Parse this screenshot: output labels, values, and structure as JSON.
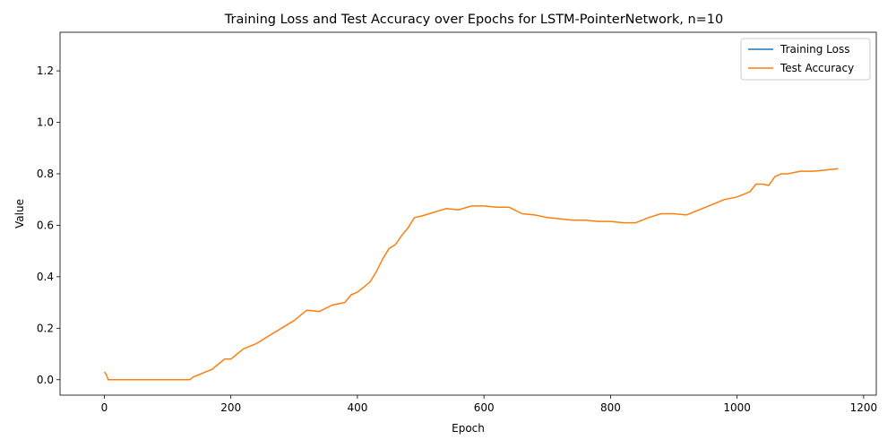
{
  "chart_data": {
    "type": "line",
    "title": "Training Loss and Test Accuracy over Epochs for LSTM-PointerNetwork, n=10",
    "xlabel": "Epoch",
    "ylabel": "Value",
    "xlim": [
      -70,
      1220
    ],
    "ylim": [
      -0.06,
      1.35
    ],
    "xticks": [
      0,
      200,
      400,
      600,
      800,
      1000,
      1200
    ],
    "xtick_labels": [
      "0",
      "200",
      "400",
      "600",
      "800",
      "1000",
      "1200"
    ],
    "yticks": [
      0.0,
      0.2,
      0.4,
      0.6,
      0.8,
      1.0,
      1.2
    ],
    "ytick_labels": [
      "0.0",
      "0.2",
      "0.4",
      "0.6",
      "0.8",
      "1.0",
      "1.2"
    ],
    "grid": false,
    "legend_position": "top-right",
    "series": [
      {
        "name": "Training Loss",
        "color": "#1f77b4",
        "x": [],
        "y": []
      },
      {
        "name": "Test Accuracy",
        "color": "#ff7f0e",
        "x": [
          0,
          3,
          6,
          20,
          60,
          100,
          135,
          140,
          150,
          160,
          170,
          180,
          190,
          200,
          210,
          220,
          240,
          260,
          280,
          300,
          320,
          340,
          360,
          380,
          390,
          400,
          410,
          420,
          430,
          440,
          450,
          460,
          470,
          480,
          490,
          500,
          520,
          540,
          560,
          580,
          600,
          620,
          640,
          660,
          680,
          700,
          720,
          740,
          760,
          780,
          800,
          820,
          840,
          860,
          880,
          900,
          920,
          940,
          960,
          980,
          1000,
          1020,
          1030,
          1040,
          1050,
          1060,
          1070,
          1080,
          1100,
          1120,
          1140,
          1160
        ],
        "y": [
          0.03,
          0.02,
          0.0,
          0.0,
          0.0,
          0.0,
          0.0,
          0.01,
          0.02,
          0.03,
          0.04,
          0.06,
          0.08,
          0.08,
          0.1,
          0.12,
          0.14,
          0.17,
          0.2,
          0.23,
          0.27,
          0.265,
          0.29,
          0.3,
          0.33,
          0.34,
          0.36,
          0.38,
          0.42,
          0.47,
          0.51,
          0.525,
          0.56,
          0.59,
          0.63,
          0.635,
          0.65,
          0.665,
          0.66,
          0.675,
          0.675,
          0.67,
          0.67,
          0.645,
          0.64,
          0.63,
          0.625,
          0.62,
          0.62,
          0.615,
          0.615,
          0.61,
          0.61,
          0.63,
          0.645,
          0.645,
          0.64,
          0.66,
          0.68,
          0.7,
          0.71,
          0.73,
          0.76,
          0.76,
          0.755,
          0.79,
          0.8,
          0.8,
          0.81,
          0.81,
          0.815,
          0.82
        ]
      }
    ]
  }
}
